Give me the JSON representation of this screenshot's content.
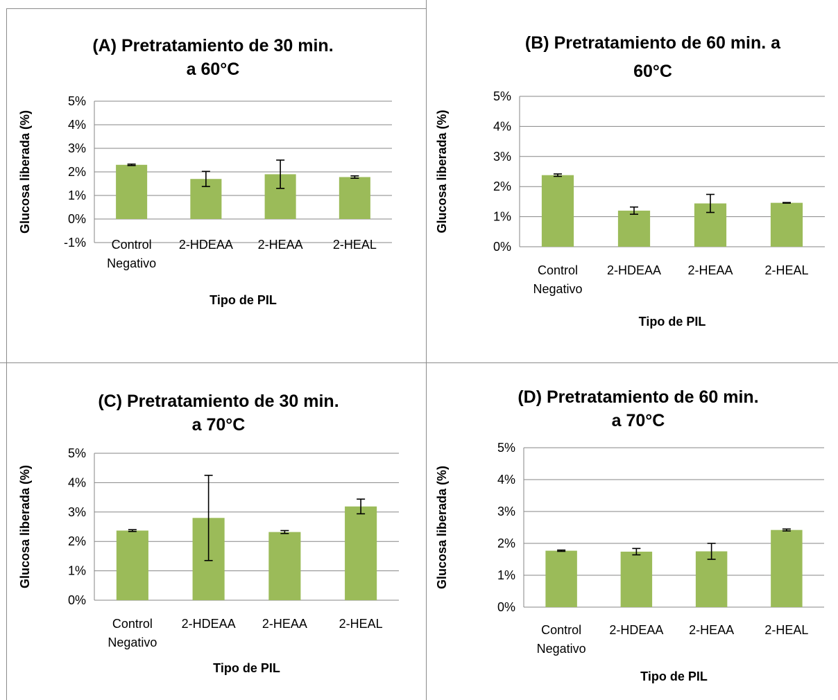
{
  "chart_data": [
    {
      "type": "bar",
      "title_lines": [
        "(A) Pretratamiento de 30 min.",
        "a 60°C"
      ],
      "xlabel": "Tipo de PIL",
      "ylabel": "Glucosa liberada (%)",
      "categories": [
        [
          "Control",
          "Negativo"
        ],
        [
          "2-HDEAA"
        ],
        [
          "2-HEAA"
        ],
        [
          "2-HEAL"
        ]
      ],
      "values": [
        2.3,
        1.7,
        1.9,
        1.78
      ],
      "errors": [
        0.03,
        0.32,
        0.6,
        0.05
      ],
      "ylim": [
        -1,
        5
      ],
      "yticks": [
        -1,
        0,
        1,
        2,
        3,
        4,
        5
      ],
      "ytick_labels": [
        "-1%",
        "0%",
        "1%",
        "2%",
        "3%",
        "4%",
        "5%"
      ],
      "grid": true,
      "legend": "none"
    },
    {
      "type": "bar",
      "title_lines": [
        "(B) Pretratamiento de 60 min. a",
        "60°C"
      ],
      "xlabel": "Tipo de PIL",
      "ylabel": "Glucosa liberada (%)",
      "categories": [
        [
          "Control",
          "Negativo"
        ],
        [
          "2-HDEAA"
        ],
        [
          "2-HEAA"
        ],
        [
          "2-HEAL"
        ]
      ],
      "values": [
        2.38,
        1.2,
        1.44,
        1.46
      ],
      "errors": [
        0.04,
        0.12,
        0.3,
        0.01
      ],
      "ylim": [
        0,
        5
      ],
      "yticks": [
        0,
        1,
        2,
        3,
        4,
        5
      ],
      "ytick_labels": [
        "0%",
        "1%",
        "2%",
        "3%",
        "4%",
        "5%"
      ],
      "grid": true,
      "legend": "none"
    },
    {
      "type": "bar",
      "title_lines": [
        "(C) Pretratamiento de 30 min.",
        "a 70°C"
      ],
      "xlabel": "Tipo de PIL",
      "ylabel": "Glucosa liberada (%)",
      "categories": [
        [
          "Control",
          "Negativo"
        ],
        [
          "2-HDEAA"
        ],
        [
          "2-HEAA"
        ],
        [
          "2-HEAL"
        ]
      ],
      "values": [
        2.37,
        2.8,
        2.32,
        3.19
      ],
      "errors": [
        0.03,
        1.45,
        0.05,
        0.25
      ],
      "ylim": [
        0,
        5
      ],
      "yticks": [
        0,
        1,
        2,
        3,
        4,
        5
      ],
      "ytick_labels": [
        "0%",
        "1%",
        "2%",
        "3%",
        "4%",
        "5%"
      ],
      "grid": true,
      "legend": "none"
    },
    {
      "type": "bar",
      "title_lines": [
        "(D) Pretratamiento de 60 min.",
        "a 70°C"
      ],
      "xlabel": "Tipo de PIL",
      "ylabel": "Glucosa liberada (%)",
      "categories": [
        [
          "Control",
          "Negativo"
        ],
        [
          "2-HDEAA"
        ],
        [
          "2-HEAA"
        ],
        [
          "2-HEAL"
        ]
      ],
      "values": [
        1.77,
        1.74,
        1.75,
        2.42
      ],
      "errors": [
        0.02,
        0.1,
        0.25,
        0.03
      ],
      "ylim": [
        0,
        5
      ],
      "yticks": [
        0,
        1,
        2,
        3,
        4,
        5
      ],
      "ytick_labels": [
        "0%",
        "1%",
        "2%",
        "3%",
        "4%",
        "5%"
      ],
      "grid": true,
      "legend": "none"
    }
  ],
  "colors": {
    "bar": "#9BBB59",
    "gridline": "#858585",
    "error_bar": "#000000"
  }
}
